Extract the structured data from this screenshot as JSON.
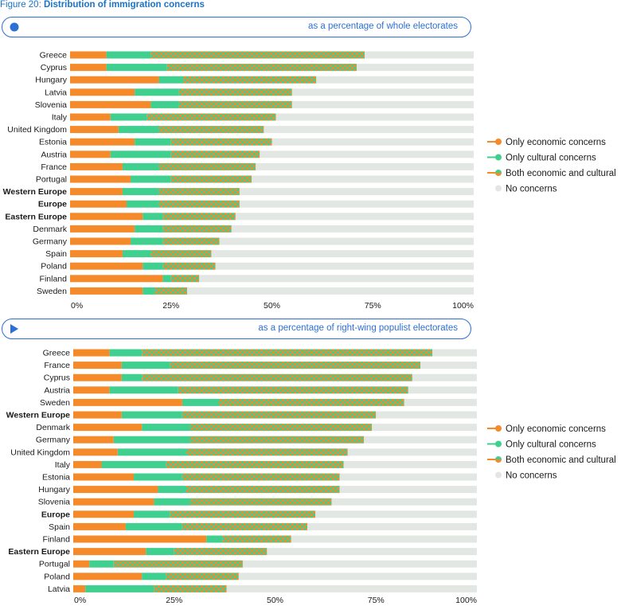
{
  "figure": {
    "label_prefix": "Figure 20:",
    "label_title": "Distribution of immigration concerns"
  },
  "colors": {
    "economic": "#f58a2b",
    "cultural": "#3fcf8e",
    "both_base": "#f58a2b",
    "both_check": "#3fcf8e",
    "none": "#e3e7e3",
    "title_blue": "#1a73c9",
    "box_blue": "#2d6fd6"
  },
  "chart_data": [
    {
      "type": "bar",
      "subtitle": "as a percentage of whole electorates",
      "marker": "circle",
      "orientation": "horizontal",
      "stacked": true,
      "xlim": [
        0,
        100
      ],
      "xticks": [
        "0%",
        "25%",
        "50%",
        "75%",
        "100%"
      ],
      "legend_placement": "right",
      "bold_categories": [
        "Western Europe",
        "Europe",
        "Eastern Europe"
      ],
      "categories": [
        "Greece",
        "Cyprus",
        "Hungary",
        "Latvia",
        "Slovenia",
        "Italy",
        "United Kingdom",
        "Estonia",
        "Austria",
        "France",
        "Portugal",
        "Western Europe",
        "Europe",
        "Eastern Europe",
        "Denmark",
        "Germany",
        "Spain",
        "Poland",
        "Finland",
        "Sweden"
      ],
      "series": [
        {
          "name": "Only economic concerns",
          "key": "economic",
          "values": [
            9,
            9,
            22,
            16,
            20,
            10,
            12,
            16,
            10,
            13,
            15,
            13,
            14,
            18,
            16,
            15,
            13,
            18,
            23,
            18
          ]
        },
        {
          "name": "Only cultural concerns",
          "key": "cultural",
          "values": [
            11,
            15,
            6,
            11,
            7,
            9,
            10,
            9,
            15,
            9,
            10,
            9,
            8,
            5,
            7,
            8,
            7,
            5,
            2,
            3
          ]
        },
        {
          "name": "Both economic and cultural",
          "key": "both",
          "values": [
            53,
            47,
            33,
            28,
            28,
            32,
            26,
            25,
            22,
            24,
            20,
            20,
            20,
            18,
            17,
            14,
            15,
            13,
            7,
            8
          ]
        },
        {
          "name": "No concerns",
          "key": "none",
          "values": [
            27,
            29,
            39,
            45,
            45,
            49,
            52,
            50,
            53,
            54,
            55,
            58,
            58,
            59,
            60,
            63,
            65,
            64,
            68,
            71
          ]
        }
      ]
    },
    {
      "type": "bar",
      "subtitle": "as a percentage of right-wing populist electorates",
      "marker": "triangle",
      "orientation": "horizontal",
      "stacked": true,
      "xlim": [
        0,
        100
      ],
      "xticks": [
        "0%",
        "25%",
        "50%",
        "75%",
        "100%"
      ],
      "legend_placement": "right",
      "bold_categories": [
        "Western Europe",
        "Europe",
        "Eastern Europe"
      ],
      "categories": [
        "Greece",
        "France",
        "Cyprus",
        "Austria",
        "Sweden",
        "Western Europe",
        "Denmark",
        "Germany",
        "United Kingdom",
        "Italy",
        "Estonia",
        "Hungary",
        "Slovenia",
        "Europe",
        "Spain",
        "Finland",
        "Eastern Europe",
        "Portugal",
        "Poland",
        "Latvia"
      ],
      "series": [
        {
          "name": "Only economic concerns",
          "key": "economic",
          "values": [
            9,
            12,
            12,
            9,
            27,
            12,
            17,
            10,
            11,
            7,
            15,
            21,
            20,
            15,
            13,
            33,
            18,
            4,
            17,
            3
          ]
        },
        {
          "name": "Only cultural concerns",
          "key": "cultural",
          "values": [
            8,
            12,
            5,
            17,
            9,
            15,
            12,
            19,
            17,
            16,
            12,
            7,
            9,
            9,
            14,
            4,
            7,
            6,
            6,
            17
          ]
        },
        {
          "name": "Both economic and cultural",
          "key": "both",
          "values": [
            72,
            62,
            67,
            57,
            46,
            48,
            45,
            43,
            40,
            44,
            39,
            38,
            35,
            36,
            31,
            17,
            23,
            32,
            18,
            18
          ]
        },
        {
          "name": "No concerns",
          "key": "none",
          "values": [
            11,
            14,
            16,
            17,
            18,
            25,
            26,
            28,
            32,
            33,
            34,
            34,
            36,
            40,
            42,
            46,
            52,
            58,
            59,
            62
          ]
        }
      ]
    }
  ]
}
